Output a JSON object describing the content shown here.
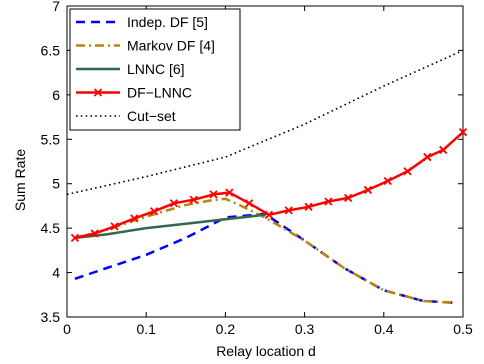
{
  "chart_data": {
    "type": "line",
    "title": "",
    "xlabel": "Relay location d",
    "ylabel": "Sum Rate",
    "xlim": [
      0,
      0.5
    ],
    "ylim": [
      3.5,
      7
    ],
    "x_ticks": [
      0,
      0.1,
      0.2,
      0.3,
      0.4,
      0.5
    ],
    "x_tick_labels": [
      "0",
      "0.1",
      "0.2",
      "0.3",
      "0.4",
      "0.5"
    ],
    "y_ticks": [
      3.5,
      4,
      4.5,
      5,
      5.5,
      6,
      6.5,
      7
    ],
    "y_tick_labels": [
      "3.5",
      "4",
      "4.5",
      "5",
      "5.5",
      "6",
      "6.5",
      "7"
    ],
    "grid": false,
    "legend_position": "top-left",
    "series": [
      {
        "name": "Indep. DF [5]",
        "color": "#0000ff",
        "style": "dashed",
        "marker": "none",
        "x": [
          0.01,
          0.05,
          0.1,
          0.15,
          0.2,
          0.25,
          0.3,
          0.35,
          0.4,
          0.45,
          0.49
        ],
        "y": [
          3.93,
          4.05,
          4.2,
          4.39,
          4.62,
          4.66,
          4.36,
          4.05,
          3.8,
          3.68,
          3.66
        ]
      },
      {
        "name": "Markov DF [4]",
        "color": "#b8860b",
        "style": "dashdot",
        "marker": "none",
        "x": [
          0.01,
          0.05,
          0.1,
          0.15,
          0.18,
          0.2,
          0.22,
          0.25,
          0.3,
          0.35,
          0.4,
          0.45,
          0.49
        ],
        "y": [
          4.39,
          4.48,
          4.63,
          4.76,
          4.81,
          4.83,
          4.75,
          4.62,
          4.36,
          4.05,
          3.8,
          3.68,
          3.66
        ]
      },
      {
        "name": "LNNC [6]",
        "color": "#2e6b4a",
        "style": "solid",
        "marker": "none",
        "x": [
          0.01,
          0.05,
          0.1,
          0.15,
          0.2,
          0.25
        ],
        "y": [
          4.39,
          4.43,
          4.5,
          4.55,
          4.6,
          4.65
        ]
      },
      {
        "name": "DF−LNNC",
        "color": "#ff0000",
        "style": "solid",
        "marker": "x",
        "x": [
          0.01,
          0.035,
          0.06,
          0.085,
          0.11,
          0.135,
          0.16,
          0.185,
          0.205,
          0.23,
          0.255,
          0.28,
          0.305,
          0.33,
          0.355,
          0.38,
          0.405,
          0.43,
          0.455,
          0.475,
          0.5
        ],
        "y": [
          4.39,
          4.44,
          4.52,
          4.61,
          4.69,
          4.78,
          4.82,
          4.88,
          4.9,
          4.78,
          4.65,
          4.7,
          4.74,
          4.8,
          4.84,
          4.93,
          5.03,
          5.14,
          5.3,
          5.38,
          5.58
        ]
      },
      {
        "name": "Cut−set",
        "color": "#000000",
        "style": "dotted",
        "marker": "none",
        "x": [
          0.0,
          0.1,
          0.2,
          0.3,
          0.4,
          0.5
        ],
        "y": [
          4.88,
          5.08,
          5.3,
          5.67,
          6.1,
          6.5
        ]
      }
    ]
  }
}
